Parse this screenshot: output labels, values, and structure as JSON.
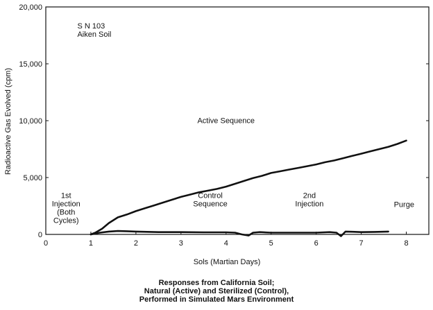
{
  "chart_data": {
    "type": "line",
    "xlabel": "Sols (Martian Days)",
    "ylabel": "Radioactive Gas Evolved (cpm)",
    "xlim": [
      0,
      8.5
    ],
    "ylim": [
      0,
      20000
    ],
    "x_ticks": [
      0,
      1,
      2,
      3,
      4,
      5,
      6,
      7,
      8
    ],
    "x_tick_labels": [
      "0",
      "1",
      "2",
      "3",
      "4",
      "5",
      "6",
      "7",
      "8"
    ],
    "y_ticks": [
      0,
      5000,
      10000,
      15000,
      20000
    ],
    "y_tick_labels": [
      "0",
      "5,000",
      "10,000",
      "15,000",
      "20,000"
    ],
    "series": [
      {
        "x": [
          1.0,
          1.1,
          1.25,
          1.4,
          1.6,
          1.8,
          2.0,
          2.2,
          2.4,
          2.6,
          2.8,
          3.0,
          3.2,
          3.4,
          3.6,
          3.8,
          4.0,
          4.2,
          4.4,
          4.6,
          4.8,
          5.0,
          5.2,
          5.4,
          5.6,
          5.8,
          6.0,
          6.2,
          6.4,
          6.6,
          6.8,
          7.0,
          7.2,
          7.4,
          7.6,
          7.8,
          8.0
        ],
        "values": [
          0,
          150,
          500,
          1000,
          1500,
          1750,
          2050,
          2300,
          2550,
          2800,
          3050,
          3300,
          3500,
          3700,
          3850,
          4000,
          4200,
          4450,
          4700,
          4950,
          5150,
          5400,
          5550,
          5700,
          5850,
          6000,
          6150,
          6350,
          6500,
          6700,
          6900,
          7100,
          7300,
          7500,
          7700,
          7950,
          8250
        ]
      },
      {
        "x": [
          1.0,
          1.2,
          1.4,
          1.6,
          1.8,
          2.0,
          2.5,
          3.0,
          3.5,
          4.0,
          4.2,
          4.35,
          4.5,
          4.6,
          4.75,
          5.0,
          5.5,
          6.0,
          6.3,
          6.45,
          6.55,
          6.65,
          6.8,
          7.0,
          7.3,
          7.6
        ],
        "values": [
          0,
          150,
          250,
          300,
          280,
          250,
          200,
          200,
          180,
          180,
          150,
          0,
          -100,
          150,
          200,
          150,
          150,
          150,
          200,
          150,
          -150,
          250,
          230,
          200,
          220,
          250
        ]
      }
    ],
    "annotations": [
      {
        "lines": [
          "S N 103",
          "Aiken Soil"
        ],
        "x": 0.7,
        "y": 18100,
        "anchor": "start"
      },
      {
        "lines": [
          "Active Sequence"
        ],
        "x": 4.0,
        "y": 9800,
        "anchor": "middle"
      },
      {
        "lines": [
          "1st",
          "Injection",
          "(Both",
          "Cycles)"
        ],
        "x": 0.45,
        "y": 3200,
        "anchor": "middle"
      },
      {
        "lines": [
          "Control",
          "Sequence"
        ],
        "x": 3.65,
        "y": 3200,
        "anchor": "middle"
      },
      {
        "lines": [
          "2nd",
          "Injection"
        ],
        "x": 5.85,
        "y": 3200,
        "anchor": "middle"
      },
      {
        "lines": [
          "Purge"
        ],
        "x": 7.95,
        "y": 2400,
        "anchor": "middle"
      }
    ],
    "grid": false,
    "legend": "none"
  },
  "caption": [
    "Responses from California Soil;",
    "Natural (Active) and Sterilized (Control),",
    "Performed in Simulated Mars Environment"
  ]
}
